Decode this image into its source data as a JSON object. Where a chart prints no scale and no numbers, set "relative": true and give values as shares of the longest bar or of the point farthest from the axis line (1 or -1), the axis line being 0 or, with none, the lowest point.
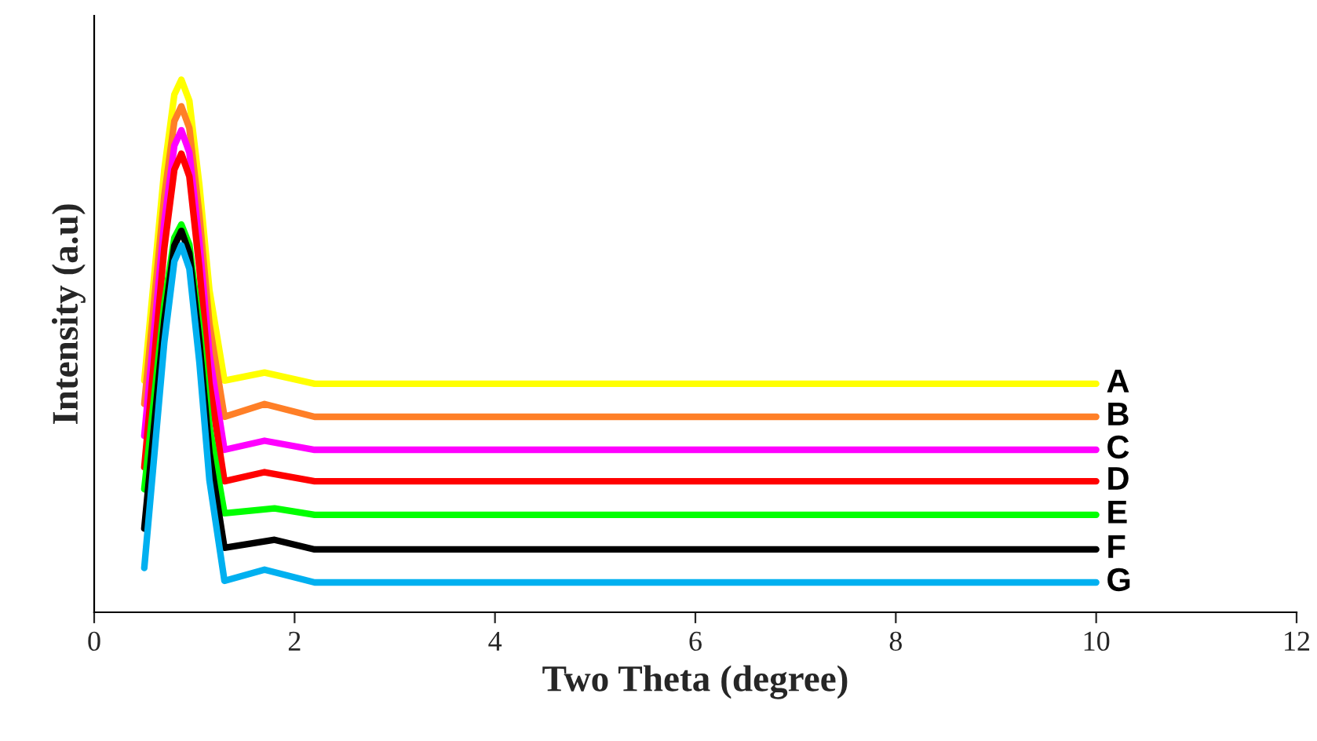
{
  "chart_data": {
    "type": "line",
    "relative": true,
    "xlabel": "Two Theta (degree)",
    "ylabel": "Intensity (a.u)",
    "xlim": [
      0,
      12
    ],
    "xticks": [
      0,
      2,
      4,
      6,
      8,
      10,
      12
    ],
    "grid": false,
    "legend": false,
    "tick_labels": "x",
    "marker": "none",
    "line_style": "solid",
    "series": [
      {
        "name": "A",
        "color": "#ffff00",
        "x": [
          0.5,
          0.6,
          0.7,
          0.8,
          0.87,
          0.95,
          1.05,
          1.15,
          1.3,
          1.7,
          2.2,
          10
        ],
        "values": [
          0.435,
          0.633,
          0.831,
          0.972,
          1.0,
          0.96,
          0.802,
          0.605,
          0.435,
          0.45,
          0.429,
          0.429
        ]
      },
      {
        "name": "B",
        "color": "#ff7f27",
        "x": [
          0.5,
          0.6,
          0.7,
          0.8,
          0.87,
          0.95,
          1.05,
          1.15,
          1.3,
          1.7,
          2.2,
          10
        ],
        "values": [
          0.391,
          0.587,
          0.782,
          0.922,
          0.95,
          0.909,
          0.746,
          0.542,
          0.367,
          0.391,
          0.367,
          0.367
        ]
      },
      {
        "name": "C",
        "color": "#ff00ff",
        "x": [
          0.5,
          0.6,
          0.7,
          0.8,
          0.87,
          0.95,
          1.05,
          1.15,
          1.3,
          1.7,
          2.2,
          10
        ],
        "values": [
          0.331,
          0.532,
          0.733,
          0.876,
          0.905,
          0.863,
          0.695,
          0.485,
          0.305,
          0.322,
          0.305,
          0.305
        ]
      },
      {
        "name": "D",
        "color": "#ff0000",
        "x": [
          0.5,
          0.6,
          0.7,
          0.8,
          0.87,
          0.95,
          1.05,
          1.15,
          1.3,
          1.7,
          2.2,
          10
        ],
        "values": [
          0.272,
          0.478,
          0.684,
          0.831,
          0.861,
          0.818,
          0.646,
          0.431,
          0.246,
          0.263,
          0.246,
          0.246
        ]
      },
      {
        "name": "E",
        "color": "#00ff00",
        "x": [
          0.5,
          0.6,
          0.7,
          0.8,
          0.87,
          0.95,
          1.05,
          1.15,
          1.3,
          1.8,
          2.2,
          10
        ],
        "values": [
          0.231,
          0.405,
          0.579,
          0.703,
          0.728,
          0.69,
          0.538,
          0.349,
          0.186,
          0.195,
          0.183,
          0.183
        ]
      },
      {
        "name": "F",
        "color": "#000000",
        "x": [
          0.5,
          0.6,
          0.7,
          0.8,
          0.87,
          0.95,
          1.05,
          1.15,
          1.3,
          1.8,
          2.2,
          10
        ],
        "values": [
          0.157,
          0.353,
          0.548,
          0.688,
          0.716,
          0.674,
          0.508,
          0.3,
          0.121,
          0.136,
          0.118,
          0.118
        ]
      },
      {
        "name": "G",
        "color": "#00b0f0",
        "x": [
          0.5,
          0.6,
          0.7,
          0.8,
          0.87,
          0.95,
          1.05,
          1.15,
          1.3,
          1.7,
          2.2,
          10
        ],
        "values": [
          0.083,
          0.295,
          0.507,
          0.659,
          0.689,
          0.645,
          0.469,
          0.248,
          0.059,
          0.08,
          0.056,
          0.056
        ]
      }
    ]
  }
}
